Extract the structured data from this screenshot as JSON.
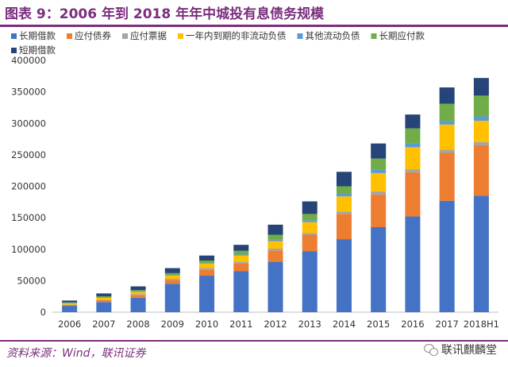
{
  "title": "图表 9：2006 年到 2018 年年中城投有息债务规模",
  "source": "资料来源：Wind，联讯证券",
  "watermark": "联讯麒麟堂",
  "watermark_icon": "wechat-icon",
  "chart_data": {
    "type": "bar",
    "stacked": true,
    "categories": [
      "2006",
      "2007",
      "2008",
      "2009",
      "2010",
      "2011",
      "2012",
      "2013",
      "2014",
      "2015",
      "2016",
      "2017",
      "2018H1"
    ],
    "ylim": [
      0,
      400000
    ],
    "yticks": [
      0,
      50000,
      100000,
      150000,
      200000,
      250000,
      300000,
      350000,
      400000
    ],
    "grid": false,
    "legend_position": "top",
    "series": [
      {
        "name": "长期借款",
        "color": "#4472c4",
        "values": [
          10000,
          16000,
          23000,
          45000,
          58000,
          65000,
          80000,
          97000,
          116000,
          135000,
          152000,
          177000,
          185000
        ]
      },
      {
        "name": "应付债券",
        "color": "#ed7d31",
        "values": [
          1500,
          3000,
          4500,
          6000,
          9000,
          12000,
          18000,
          26000,
          40000,
          52000,
          70000,
          76000,
          80000
        ]
      },
      {
        "name": "应付票据",
        "color": "#a5a5a5",
        "values": [
          500,
          800,
          1000,
          2000,
          3000,
          3000,
          3000,
          3000,
          4000,
          5000,
          5000,
          5000,
          5000
        ]
      },
      {
        "name": "一年内到期的非流动负债",
        "color": "#ffc000",
        "values": [
          2000,
          3000,
          3500,
          5000,
          7000,
          10000,
          12000,
          17000,
          24000,
          29000,
          35000,
          40000,
          34000
        ]
      },
      {
        "name": "其他流动负债",
        "color": "#5b9bd5",
        "values": [
          300,
          500,
          600,
          1000,
          1000,
          1500,
          2000,
          3000,
          4000,
          5000,
          6000,
          6000,
          7000
        ]
      },
      {
        "name": "长期应付款",
        "color": "#70ad47",
        "values": [
          1200,
          2000,
          2400,
          3000,
          4000,
          6000,
          8000,
          10000,
          12000,
          18000,
          24000,
          27000,
          33000
        ]
      },
      {
        "name": "短期借款",
        "color": "#264478",
        "values": [
          3000,
          4500,
          6000,
          8000,
          8000,
          9500,
          16000,
          20000,
          23000,
          24000,
          22000,
          26000,
          28000
        ]
      }
    ]
  }
}
